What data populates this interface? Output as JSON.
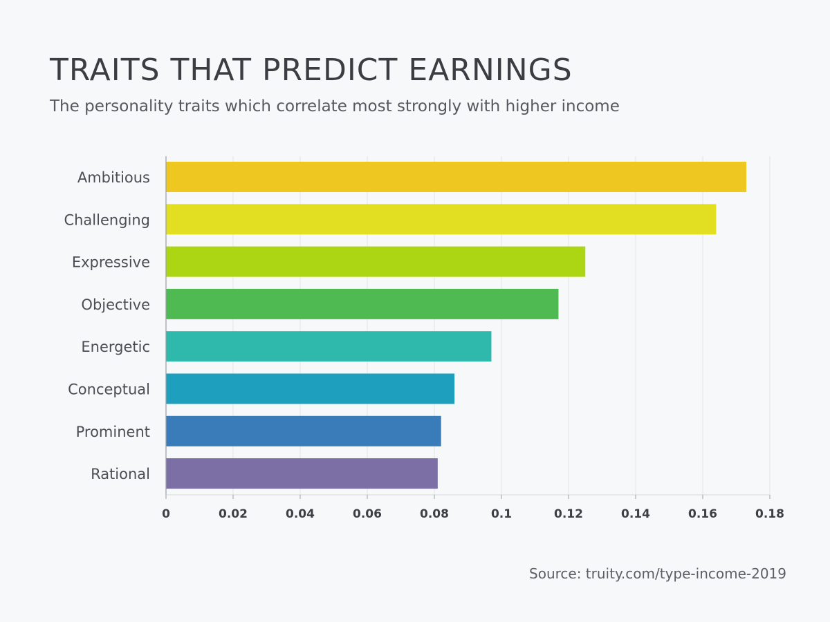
{
  "header": {
    "title": "TRAITS THAT PREDICT EARNINGS",
    "subtitle": "The personality traits which correlate most strongly with higher income"
  },
  "footer": {
    "source": "Source: truity.com/type-income-2019"
  },
  "chart_data": {
    "type": "bar",
    "orientation": "horizontal",
    "categories": [
      "Ambitious",
      "Challenging",
      "Expressive",
      "Objective",
      "Energetic",
      "Conceptual",
      "Prominent",
      "Rational"
    ],
    "values": [
      0.173,
      0.164,
      0.125,
      0.117,
      0.097,
      0.086,
      0.082,
      0.081
    ],
    "colors": [
      "#efc721",
      "#e2df22",
      "#acd613",
      "#4fba52",
      "#2fb8ac",
      "#1e9fbe",
      "#3a7bba",
      "#7b6fa6"
    ],
    "xlim": [
      0,
      0.18
    ],
    "xticks": [
      "0",
      "0.02",
      "0.04",
      "0.06",
      "0.08",
      "0.1",
      "0.12",
      "0.14",
      "0.16",
      "0.18"
    ],
    "xlabel": "",
    "ylabel": "",
    "grid": true,
    "legend": "none"
  }
}
